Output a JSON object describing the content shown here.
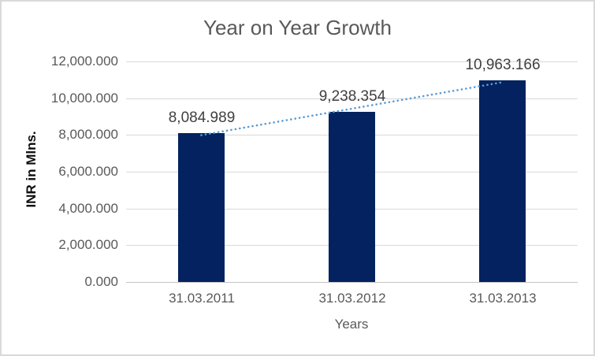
{
  "chart_data": {
    "type": "bar",
    "title": "Year on Year Growth",
    "xlabel": "Years",
    "ylabel": "INR in Mlns.",
    "categories": [
      "31.03.2011",
      "31.03.2012",
      "31.03.2013"
    ],
    "values": [
      8084.989,
      9238.354,
      10963.166
    ],
    "data_labels": [
      "8,084.989",
      "9,238.354",
      "10,963.166"
    ],
    "ylim": [
      0,
      12000
    ],
    "y_tick_interval": 2000,
    "y_tick_labels": [
      "0.000",
      "2,000.000",
      "4,000.000",
      "6,000.000",
      "8,000.000",
      "10,000.000",
      "12,000.000"
    ],
    "grid": true,
    "legend": "none",
    "trendline": {
      "type": "linear",
      "style": "dotted"
    },
    "colors": {
      "bar": "#03225f",
      "trendline": "#5b9bd5",
      "gridline": "#d9d9d9",
      "baseline": "#c3c3c3",
      "title_text": "#595959",
      "axis_text": "#595959",
      "data_label_text": "#404040",
      "y_axis_title_text": "#0d0d0d",
      "border": "#d9d9d9",
      "background": "#ffffff"
    }
  }
}
